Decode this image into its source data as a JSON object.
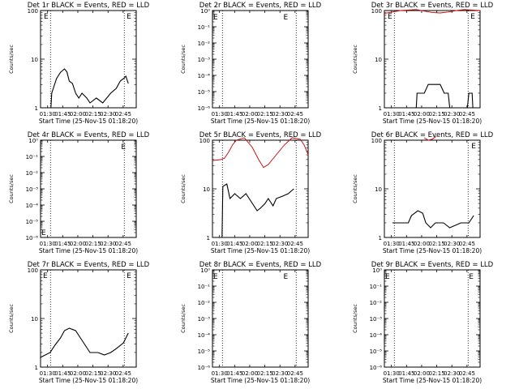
{
  "chart_data": [
    {
      "type": "line",
      "title": "Det 1r BLACK = Events, RED = LLD",
      "xlabel": "Start Time (25-Nov-15 01:18:20)",
      "ylabel": "Counts/sec",
      "yscale": "log",
      "ytick_labels": [
        "1",
        "10",
        "100"
      ],
      "ylim_exp": [
        0,
        2
      ],
      "xtick_labels": [
        "01:30",
        "01:45",
        "02:00",
        "02:15",
        "02:30",
        "02:45"
      ],
      "vlines_min": [
        12.5,
        105
      ],
      "E_marks": [
        {
          "x_min": 3,
          "y_exp": 1.9
        },
        {
          "x_min": 107,
          "y_exp": 1.9
        }
      ],
      "series": [
        {
          "color": "#000000",
          "points": [
            [
              6,
              0
            ],
            [
              13,
              0
            ],
            [
              14,
              0.3
            ],
            [
              18,
              0.5
            ],
            [
              20,
              0.6
            ],
            [
              25,
              0.73
            ],
            [
              30,
              0.8
            ],
            [
              33,
              0.74
            ],
            [
              36,
              0.55
            ],
            [
              40,
              0.5
            ],
            [
              44,
              0.3
            ],
            [
              48,
              0.2
            ],
            [
              52,
              0.3
            ],
            [
              58,
              0.2
            ],
            [
              62,
              0.1
            ],
            [
              70,
              0.2
            ],
            [
              78,
              0.1
            ],
            [
              88,
              0.3
            ],
            [
              95,
              0.4
            ],
            [
              100,
              0.55
            ],
            [
              104,
              0.6
            ],
            [
              107,
              0.65
            ],
            [
              110,
              0.5
            ]
          ]
        }
      ]
    },
    {
      "type": "line",
      "title": "Det 2r BLACK = Events, RED = LLD",
      "xlabel": "Start Time (25-Nov-15 01:18:20)",
      "ylabel": "Counts/sec",
      "yscale": "log",
      "ytick_labels": [
        "10⁰",
        "10⁻¹",
        "10⁻²",
        "10⁻³",
        "10⁻⁴",
        "10⁻⁵",
        "10⁻⁶"
      ],
      "ylim_exp": [
        -6,
        0
      ],
      "xtick_labels": [
        "01:30",
        "01:45",
        "02:00",
        "02:15",
        "02:30",
        "02:45"
      ],
      "vlines_min": [
        12.5,
        105
      ],
      "E_marks": [
        {
          "x_min": 0,
          "y_exp": -0.35
        },
        {
          "x_min": 88,
          "y_exp": -0.35
        }
      ],
      "series": []
    },
    {
      "type": "line",
      "title": "Det 3r BLACK = Events, RED = LLD",
      "xlabel": "Start Time (25-Nov-15 01:18:20)",
      "ylabel": "Counts/sec",
      "yscale": "log",
      "ytick_labels": [
        "1",
        "10",
        "100"
      ],
      "ylim_exp": [
        0,
        2
      ],
      "xtick_labels": [
        "01:30",
        "01:45",
        "02:00",
        "02:15",
        "02:30",
        "02:45"
      ],
      "vlines_min": [
        12.5,
        105
      ],
      "E_marks": [
        {
          "x_min": 3,
          "y_exp": 1.9
        },
        {
          "x_min": 107,
          "y_exp": 1.9
        }
      ],
      "series": [
        {
          "color": "#cc0000",
          "points": [
            [
              0,
              1.94
            ],
            [
              10,
              1.97
            ],
            [
              20,
              2.0
            ],
            [
              40,
              2.02
            ],
            [
              60,
              1.96
            ],
            [
              70,
              1.95
            ],
            [
              80,
              1.97
            ],
            [
              90,
              2.0
            ],
            [
              100,
              2.02
            ],
            [
              120,
              2.0
            ]
          ]
        },
        {
          "color": "#000000",
          "points": [
            [
              40,
              0
            ],
            [
              41,
              0.3
            ],
            [
              50,
              0.3
            ],
            [
              55,
              0.48
            ],
            [
              70,
              0.48
            ],
            [
              75,
              0.3
            ],
            [
              80,
              0.3
            ],
            [
              82,
              0
            ],
            [
              104,
              0
            ],
            [
              106,
              0.3
            ],
            [
              110,
              0.3
            ],
            [
              111,
              0
            ]
          ]
        }
      ]
    },
    {
      "type": "line",
      "title": "Det 4r BLACK = Events, RED = LLD",
      "xlabel": "Start Time (25-Nov-15 01:18:20)",
      "ylabel": "Counts/sec",
      "yscale": "log",
      "ytick_labels": [
        "10⁰",
        "10⁻¹",
        "10⁻²",
        "10⁻³",
        "10⁻⁴",
        "10⁻⁵",
        "10⁻⁶"
      ],
      "ylim_exp": [
        -6,
        0
      ],
      "xtick_labels": [
        "01:30",
        "01:45",
        "02:00",
        "02:15",
        "02:30",
        "02:45"
      ],
      "vlines_min": [
        12.5,
        105
      ],
      "E_marks": [
        {
          "x_min": 0,
          "y_exp": -5.65
        },
        {
          "x_min": 100,
          "y_exp": -0.35
        }
      ],
      "series": []
    },
    {
      "type": "line",
      "title": "Det 5r BLACK = Events, RED = LLD",
      "xlabel": "Start Time (25-Nov-15 01:18:20)",
      "ylabel": "Counts/sec",
      "yscale": "log",
      "ytick_labels": [
        "1",
        "10",
        "100"
      ],
      "ylim_exp": [
        0,
        2
      ],
      "xtick_labels": [
        "01:30",
        "01:45",
        "02:00",
        "02:15",
        "02:30",
        "02:45"
      ],
      "vlines_min": [
        12.5,
        105
      ],
      "E_marks": [],
      "series": [
        {
          "color": "#cc0000",
          "points": [
            [
              0,
              1.58
            ],
            [
              10,
              1.6
            ],
            [
              15,
              1.63
            ],
            [
              20,
              1.75
            ],
            [
              25,
              1.9
            ],
            [
              30,
              2.0
            ],
            [
              40,
              2.05
            ],
            [
              50,
              1.85
            ],
            [
              58,
              1.6
            ],
            [
              64,
              1.44
            ],
            [
              70,
              1.5
            ],
            [
              80,
              1.7
            ],
            [
              90,
              1.9
            ],
            [
              100,
              2.05
            ],
            [
              110,
              2.02
            ],
            [
              115,
              1.9
            ],
            [
              120,
              1.7
            ]
          ]
        },
        {
          "color": "#000000",
          "points": [
            [
              12,
              0
            ],
            [
              13,
              1.05
            ],
            [
              18,
              1.1
            ],
            [
              22,
              0.8
            ],
            [
              28,
              0.9
            ],
            [
              35,
              0.8
            ],
            [
              42,
              0.9
            ],
            [
              50,
              0.7
            ],
            [
              56,
              0.55
            ],
            [
              60,
              0.6
            ],
            [
              66,
              0.7
            ],
            [
              70,
              0.8
            ],
            [
              76,
              0.65
            ],
            [
              80,
              0.8
            ],
            [
              88,
              0.85
            ],
            [
              95,
              0.9
            ],
            [
              102,
              1.0
            ]
          ]
        }
      ]
    },
    {
      "type": "line",
      "title": "Det 6r BLACK = Events, RED = LLD",
      "xlabel": "Start Time (25-Nov-15 01:18:20)",
      "ylabel": "Counts/sec",
      "yscale": "log",
      "ytick_labels": [
        "1",
        "10",
        "100"
      ],
      "ylim_exp": [
        0,
        2
      ],
      "xtick_labels": [
        "01:30",
        "01:45",
        "02:00",
        "02:15",
        "02:30",
        "02:45"
      ],
      "vlines_min": [
        12.5,
        105
      ],
      "E_marks": [
        {
          "x_min": 108,
          "y_exp": 1.9
        }
      ],
      "series": [
        {
          "color": "#cc0000",
          "points": [
            [
              50,
              2.05
            ],
            [
              55,
              2.0
            ],
            [
              60,
              2.02
            ],
            [
              65,
              2.08
            ]
          ]
        },
        {
          "color": "#000000",
          "points": [
            [
              10,
              0.3
            ],
            [
              30,
              0.3
            ],
            [
              34,
              0.45
            ],
            [
              42,
              0.55
            ],
            [
              48,
              0.5
            ],
            [
              52,
              0.3
            ],
            [
              58,
              0.2
            ],
            [
              64,
              0.3
            ],
            [
              74,
              0.3
            ],
            [
              82,
              0.2
            ],
            [
              96,
              0.3
            ],
            [
              106,
              0.3
            ],
            [
              112,
              0.45
            ]
          ]
        }
      ]
    },
    {
      "type": "line",
      "title": "Det 7r BLACK = Events, RED = LLD",
      "xlabel": "Start Time (25-Nov-15 01:18:20)",
      "ylabel": "Counts/sec",
      "yscale": "log",
      "ytick_labels": [
        "1",
        "10",
        "100"
      ],
      "ylim_exp": [
        0,
        2
      ],
      "xtick_labels": [
        "01:30",
        "01:45",
        "02:00",
        "02:15",
        "02:30",
        "02:45"
      ],
      "vlines_min": [
        12.5,
        105
      ],
      "E_marks": [
        {
          "x_min": 2,
          "y_exp": 1.9
        },
        {
          "x_min": 107,
          "y_exp": 1.9
        }
      ],
      "series": [
        {
          "color": "#000000",
          "points": [
            [
              0,
              0.2
            ],
            [
              12,
              0.3
            ],
            [
              18,
              0.45
            ],
            [
              25,
              0.6
            ],
            [
              30,
              0.75
            ],
            [
              36,
              0.8
            ],
            [
              44,
              0.75
            ],
            [
              50,
              0.6
            ],
            [
              56,
              0.45
            ],
            [
              62,
              0.3
            ],
            [
              72,
              0.3
            ],
            [
              80,
              0.25
            ],
            [
              88,
              0.3
            ],
            [
              95,
              0.38
            ],
            [
              104,
              0.5
            ],
            [
              110,
              0.7
            ]
          ]
        }
      ]
    },
    {
      "type": "line",
      "title": "Det 8r BLACK = Events, RED = LLD",
      "xlabel": "Start Time (25-Nov-15 01:18:20)",
      "ylabel": "Counts/sec",
      "yscale": "log",
      "ytick_labels": [
        "10⁰",
        "10⁻¹",
        "10⁻²",
        "10⁻³",
        "10⁻⁴",
        "10⁻⁵",
        "10⁻⁶"
      ],
      "ylim_exp": [
        -6,
        0
      ],
      "xtick_labels": [
        "01:30",
        "01:45",
        "02:00",
        "02:15",
        "02:30",
        "02:45"
      ],
      "vlines_min": [
        12.5,
        105
      ],
      "E_marks": [
        {
          "x_min": 0,
          "y_exp": -0.35
        },
        {
          "x_min": 88,
          "y_exp": -0.35
        }
      ],
      "series": []
    },
    {
      "type": "line",
      "title": "Det 9r BLACK = Events, RED = LLD",
      "xlabel": "Start Time (25-Nov-15 01:18:20)",
      "ylabel": "Counts/sec",
      "yscale": "log",
      "ytick_labels": [
        "10⁰",
        "10⁻¹",
        "10⁻²",
        "10⁻³",
        "10⁻⁴",
        "10⁻⁵",
        "10⁻⁶"
      ],
      "ylim_exp": [
        -6,
        0
      ],
      "xtick_labels": [
        "01:30",
        "01:45",
        "02:00",
        "02:15",
        "02:30",
        "02:45"
      ],
      "vlines_min": [
        12.5,
        105
      ],
      "E_marks": [
        {
          "x_min": 0,
          "y_exp": -0.35
        },
        {
          "x_min": 105,
          "y_exp": -0.35
        }
      ],
      "series": []
    }
  ],
  "x_axis_minutes_from_0130": {
    "min": -7,
    "max": 88
  }
}
